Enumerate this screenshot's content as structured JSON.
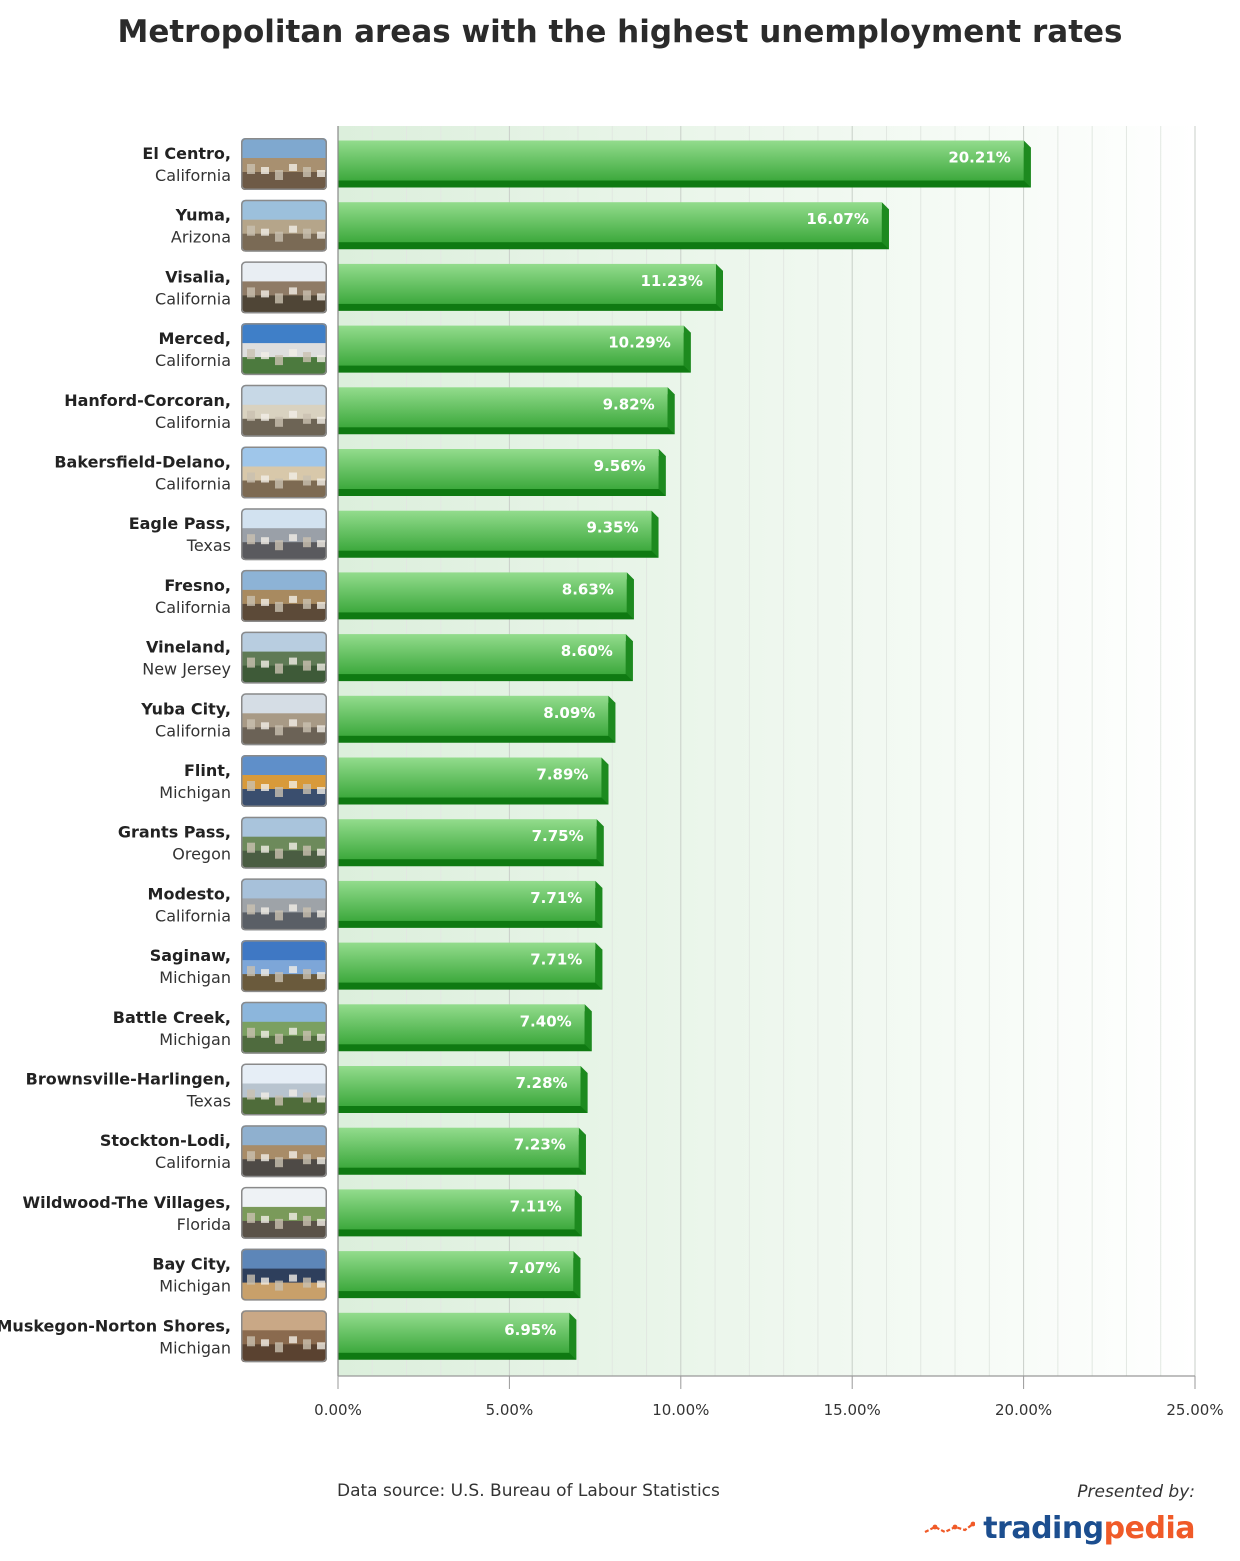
{
  "chart_data": {
    "type": "bar",
    "orientation": "horizontal",
    "title": "Metropolitan areas with the highest unemployment rates",
    "xlabel": "",
    "ylabel": "",
    "xlim": [
      0,
      25
    ],
    "x_ticks": [
      "0.00%",
      "5.00%",
      "10.00%",
      "15.00%",
      "20.00%",
      "25.00%"
    ],
    "grid": true,
    "categories": [
      {
        "name": "El Centro,",
        "region": "California",
        "value": 20.21,
        "label": "20.21%"
      },
      {
        "name": "Yuma,",
        "region": "Arizona",
        "value": 16.07,
        "label": "16.07%"
      },
      {
        "name": "Visalia,",
        "region": "California",
        "value": 11.23,
        "label": "11.23%"
      },
      {
        "name": "Merced,",
        "region": "California",
        "value": 10.29,
        "label": "10.29%"
      },
      {
        "name": "Hanford-Corcoran,",
        "region": "California",
        "value": 9.82,
        "label": "9.82%"
      },
      {
        "name": "Bakersfield-Delano,",
        "region": "California",
        "value": 9.56,
        "label": "9.56%"
      },
      {
        "name": "Eagle Pass,",
        "region": "Texas",
        "value": 9.35,
        "label": "9.35%"
      },
      {
        "name": "Fresno,",
        "region": "California",
        "value": 8.63,
        "label": "8.63%"
      },
      {
        "name": "Vineland,",
        "region": "New Jersey",
        "value": 8.6,
        "label": "8.60%"
      },
      {
        "name": "Yuba City,",
        "region": "California",
        "value": 8.09,
        "label": "8.09%"
      },
      {
        "name": "Flint,",
        "region": "Michigan",
        "value": 7.89,
        "label": "7.89%"
      },
      {
        "name": "Grants Pass,",
        "region": "Oregon",
        "value": 7.75,
        "label": "7.75%"
      },
      {
        "name": "Modesto,",
        "region": "California",
        "value": 7.71,
        "label": "7.71%"
      },
      {
        "name": "Saginaw,",
        "region": "Michigan",
        "value": 7.71,
        "label": "7.71%"
      },
      {
        "name": "Battle Creek,",
        "region": "Michigan",
        "value": 7.4,
        "label": "7.40%"
      },
      {
        "name": "Brownsville-Harlingen,",
        "region": "Texas",
        "value": 7.28,
        "label": "7.28%"
      },
      {
        "name": "Stockton-Lodi,",
        "region": "California",
        "value": 7.23,
        "label": "7.23%"
      },
      {
        "name": "Wildwood-The Villages,",
        "region": "Florida",
        "value": 7.11,
        "label": "7.11%"
      },
      {
        "name": "Bay City,",
        "region": "Michigan",
        "value": 7.07,
        "label": "7.07%"
      },
      {
        "name": "Muskegon-Norton Shores,",
        "region": "Michigan",
        "value": 6.95,
        "label": "6.95%"
      }
    ],
    "colors": {
      "bar_light": "#8fd88a",
      "bar_mid": "#43b043",
      "bar_dark": "#0f7a12",
      "plot_bg": "#e3f1e3",
      "grid": "#d3d9d3"
    }
  },
  "footer": {
    "source": "Data source: U.S. Bureau of Labour Statistics",
    "presented_by": "Presented by:",
    "brand_part1": "trading",
    "brand_part2": "pedia",
    "brand_icon": "trend-line-icon",
    "brand_color_primary": "#1c4e8f",
    "brand_color_accent": "#f05a28"
  }
}
